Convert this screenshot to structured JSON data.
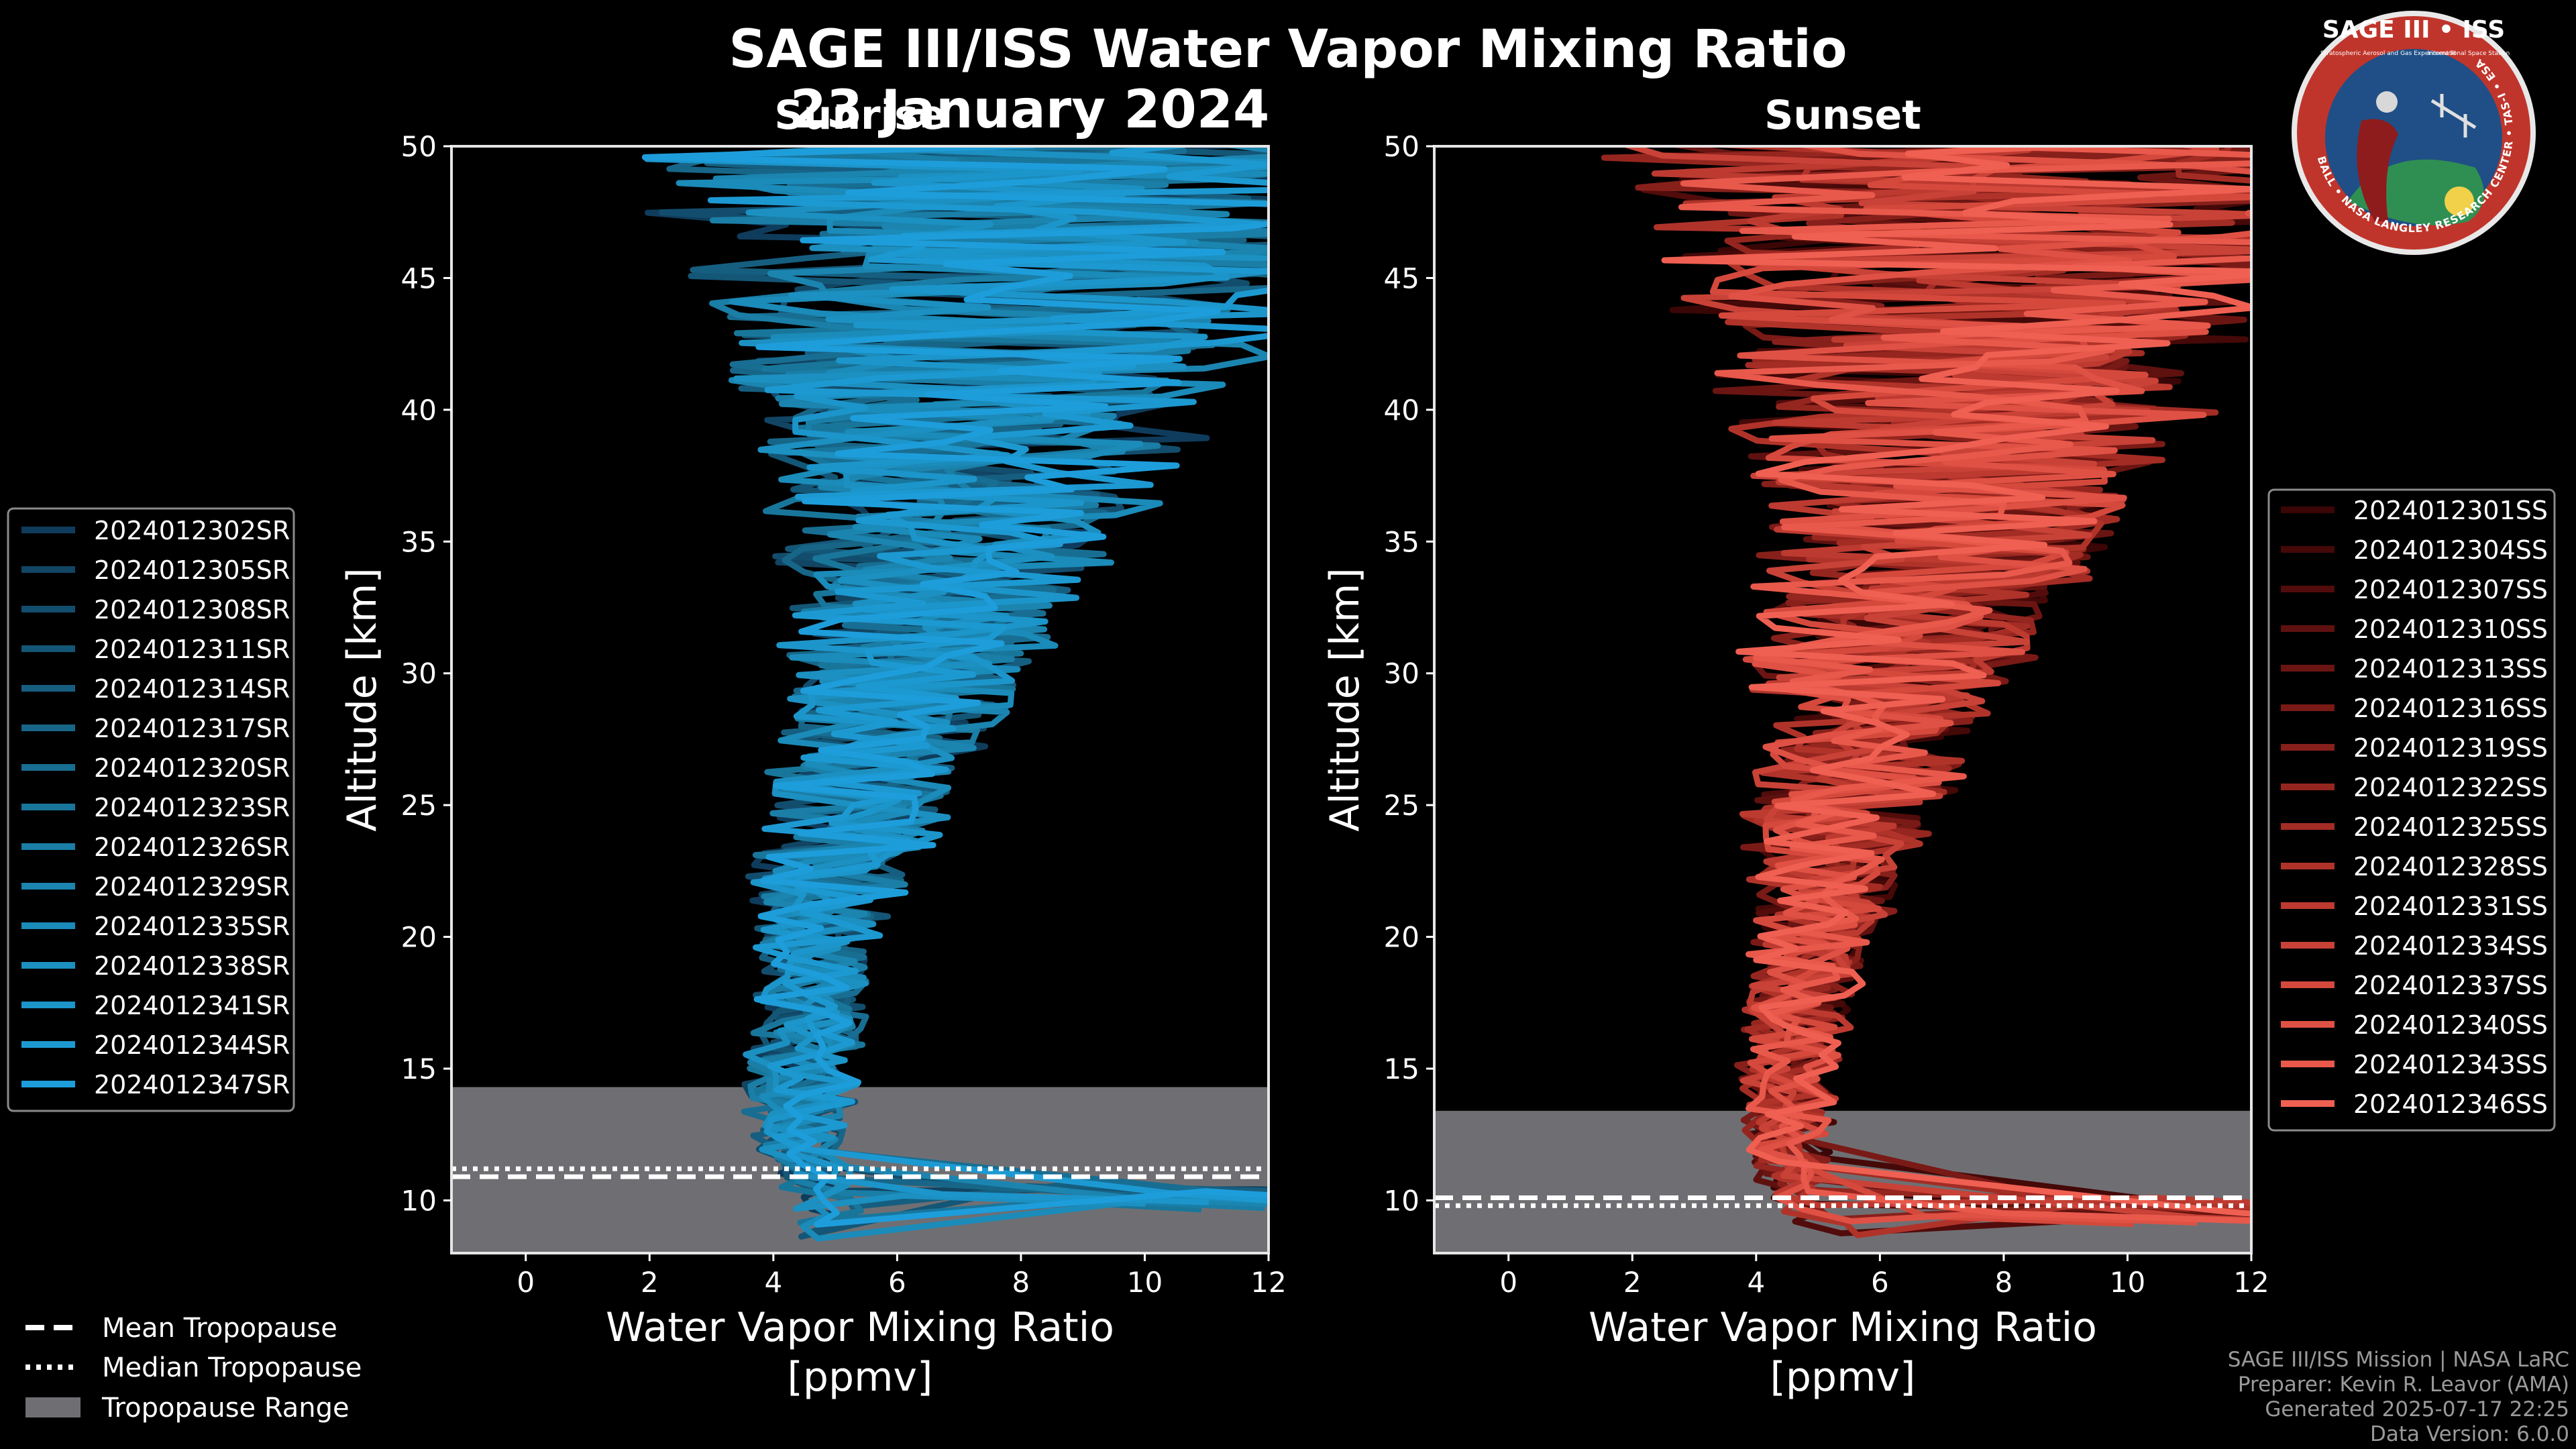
{
  "title": "SAGE III/ISS Water Vapor Mixing Ratio",
  "date": "23 January 2024",
  "badge": {
    "title": "SAGE III • ISS",
    "subtitle": "Stratospheric Aerosol and Gas Experiment III",
    "subtitle2": "International Space Station",
    "ring_text": "BALL • NASA LANGLEY RESEARCH CENTER • TAS-I • ESA"
  },
  "colors": {
    "sunrise": "#1c8fd0",
    "sunset": "#e8574a",
    "tropopause_fill": "#6f6f73",
    "background": "#000000"
  },
  "shared_legend": {
    "mean": "Mean Tropopause",
    "median": "Median Tropopause",
    "range": "Tropopause Range"
  },
  "credits": [
    "SAGE III/ISS Mission | NASA LaRC",
    "Preparer: Kevin R. Leavor (AMA)",
    "Generated 2025-07-17 22:25",
    "Data Version: 6.0.0"
  ],
  "chart_data": [
    {
      "panel": "sunrise",
      "type": "line",
      "title": "Sunrise",
      "xlabel_line1": "Water Vapor Mixing Ratio",
      "xlabel_line2": "[ppmv]",
      "ylabel": "Altitude [km]",
      "xlim": [
        -1.2,
        12
      ],
      "ylim": [
        8,
        50
      ],
      "xticks": [
        0,
        2,
        4,
        6,
        8,
        10,
        12
      ],
      "yticks": [
        10,
        15,
        20,
        25,
        30,
        35,
        40,
        45,
        50
      ],
      "tropopause": {
        "min": 8,
        "max": 14.3,
        "mean": 10.9,
        "median": 11.2
      },
      "series": [
        {
          "name": "2024012302SR",
          "color": "#0f3c5c"
        },
        {
          "name": "2024012305SR",
          "color": "#114563"
        },
        {
          "name": "2024012308SR",
          "color": "#134d6d"
        },
        {
          "name": "2024012311SR",
          "color": "#145676"
        },
        {
          "name": "2024012314SR",
          "color": "#165e80"
        },
        {
          "name": "2024012317SR",
          "color": "#176688"
        },
        {
          "name": "2024012320SR",
          "color": "#186e92"
        },
        {
          "name": "2024012323SR",
          "color": "#19769b"
        },
        {
          "name": "2024012326SR",
          "color": "#1a7ea6"
        },
        {
          "name": "2024012329SR",
          "color": "#1b85b0"
        },
        {
          "name": "2024012335SR",
          "color": "#1b8bb9"
        },
        {
          "name": "2024012338SR",
          "color": "#1c90c1"
        },
        {
          "name": "2024012341SR",
          "color": "#1c95ca"
        },
        {
          "name": "2024012344SR",
          "color": "#1d99d2"
        },
        {
          "name": "2024012347SR",
          "color": "#1e9ddb"
        }
      ],
      "envelope": {
        "altitude": [
          9.5,
          11,
          12.5,
          14,
          15,
          16,
          17,
          18,
          20,
          22,
          24,
          26,
          28,
          30,
          33,
          36,
          39,
          42,
          45,
          48,
          50
        ],
        "center": [
          5.0,
          4.6,
          4.4,
          4.5,
          4.4,
          4.5,
          4.6,
          4.6,
          4.7,
          4.9,
          5.2,
          5.5,
          5.8,
          6.2,
          6.6,
          7.0,
          7.4,
          7.7,
          8.0,
          8.0,
          8.0
        ],
        "spread": [
          0.6,
          0.6,
          0.8,
          0.9,
          0.9,
          0.9,
          0.9,
          0.9,
          1.0,
          1.2,
          1.4,
          1.6,
          1.8,
          2.0,
          2.4,
          2.9,
          3.5,
          4.3,
          5.0,
          5.6,
          6.0
        ]
      }
    },
    {
      "panel": "sunset",
      "type": "line",
      "title": "Sunset",
      "xlabel_line1": "Water Vapor Mixing Ratio",
      "xlabel_line2": "[ppmv]",
      "ylabel": "Altitude [km]",
      "xlim": [
        -1.2,
        12
      ],
      "ylim": [
        8,
        50
      ],
      "xticks": [
        0,
        2,
        4,
        6,
        8,
        10,
        12
      ],
      "yticks": [
        10,
        15,
        20,
        25,
        30,
        35,
        40,
        45,
        50
      ],
      "tropopause": {
        "min": 8,
        "max": 13.4,
        "mean": 10.1,
        "median": 9.8
      },
      "series": [
        {
          "name": "2024012301SS",
          "color": "#3a0606"
        },
        {
          "name": "2024012304SS",
          "color": "#450908"
        },
        {
          "name": "2024012307SS",
          "color": "#510c0b"
        },
        {
          "name": "2024012310SS",
          "color": "#5e110f"
        },
        {
          "name": "2024012313SS",
          "color": "#6b1512"
        },
        {
          "name": "2024012316SS",
          "color": "#791a16"
        },
        {
          "name": "2024012319SS",
          "color": "#87201b"
        },
        {
          "name": "2024012322SS",
          "color": "#95261f"
        },
        {
          "name": "2024012325SS",
          "color": "#a32c24"
        },
        {
          "name": "2024012328SS",
          "color": "#b0332a"
        },
        {
          "name": "2024012331SS",
          "color": "#bd3a30"
        },
        {
          "name": "2024012334SS",
          "color": "#c94237"
        },
        {
          "name": "2024012337SS",
          "color": "#d5493d"
        },
        {
          "name": "2024012340SS",
          "color": "#df5144"
        },
        {
          "name": "2024012343SS",
          "color": "#e8594c"
        },
        {
          "name": "2024012346SS",
          "color": "#ef6052"
        }
      ],
      "envelope": {
        "altitude": [
          9.0,
          10,
          11,
          12.5,
          14,
          15,
          16,
          17,
          18,
          20,
          22,
          24,
          26,
          28,
          30,
          33,
          36,
          39,
          42,
          45,
          48,
          50
        ],
        "center": [
          5.2,
          4.8,
          4.6,
          4.5,
          4.5,
          4.5,
          4.6,
          4.7,
          4.7,
          4.9,
          5.1,
          5.3,
          5.6,
          5.8,
          6.0,
          6.5,
          7.0,
          7.4,
          7.7,
          7.8,
          8.0,
          8.0
        ],
        "spread": [
          0.6,
          0.6,
          0.6,
          0.7,
          0.7,
          0.8,
          0.8,
          0.9,
          0.9,
          1.0,
          1.2,
          1.4,
          1.6,
          1.8,
          2.1,
          2.5,
          3.0,
          3.6,
          4.3,
          5.0,
          5.6,
          6.0
        ]
      }
    }
  ]
}
